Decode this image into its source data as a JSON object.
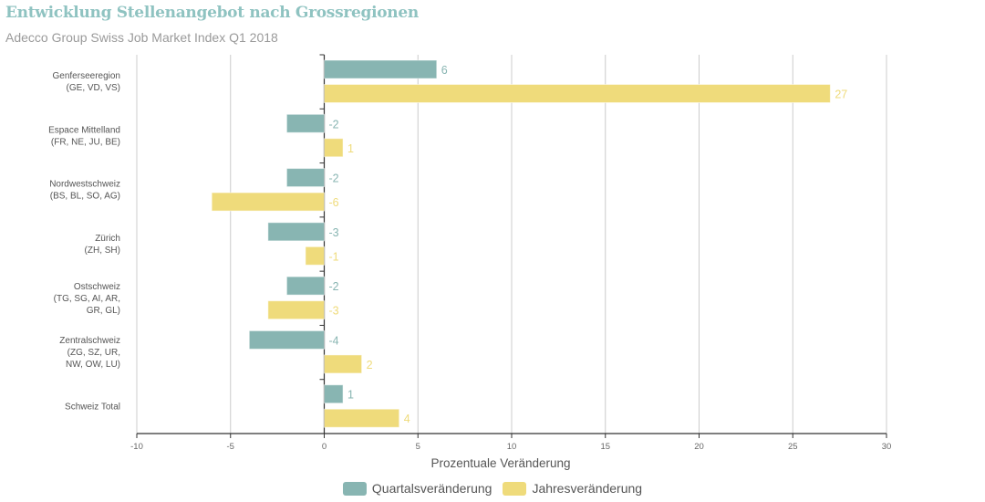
{
  "header": {
    "title": "Entwicklung Stellenangebot nach Grossregionen",
    "subtitle": "Adecco Group Swiss Job Market Index Q1 2018"
  },
  "colors": {
    "quarterly": "#88b5b2",
    "yearly": "#efdb7b",
    "title": "#8fc3c1",
    "grid": "#cccccc",
    "axis": "#333333"
  },
  "legend": {
    "items": [
      {
        "label": "Quartalsveränderung",
        "color": "#88b5b2"
      },
      {
        "label": "Jahresveränderung",
        "color": "#efdb7b"
      }
    ]
  },
  "chart_data": {
    "type": "bar",
    "orientation": "horizontal",
    "title": "Entwicklung Stellenangebot nach Grossregionen",
    "subtitle": "Adecco Group Swiss Job Market Index Q1 2018",
    "xlabel": "Prozentuale Veränderung",
    "ylabel": "",
    "xlim": [
      -10,
      30
    ],
    "xticks": [
      -10,
      -5,
      0,
      5,
      10,
      15,
      20,
      25,
      30
    ],
    "grid": true,
    "legend_position": "bottom",
    "categories": [
      [
        "Genferseeregion",
        "(GE, VD, VS)"
      ],
      [
        "Espace Mittelland",
        "(FR, NE, JU, BE)"
      ],
      [
        "Nordwestschweiz",
        "(BS, BL, SO, AG)"
      ],
      [
        "Zürich",
        "(ZH, SH)"
      ],
      [
        "Ostschweiz",
        "(TG, SG, AI, AR,",
        "GR, GL)"
      ],
      [
        "Zentralschweiz",
        "(ZG, SZ, UR,",
        "NW, OW, LU)"
      ],
      [
        "Schweiz Total"
      ]
    ],
    "series": [
      {
        "name": "Quartalsveränderung",
        "values": [
          6,
          -2,
          -2,
          -3,
          -2,
          -4,
          1
        ]
      },
      {
        "name": "Jahresveränderung",
        "values": [
          27,
          1,
          -6,
          -1,
          -3,
          2,
          4
        ]
      }
    ]
  }
}
